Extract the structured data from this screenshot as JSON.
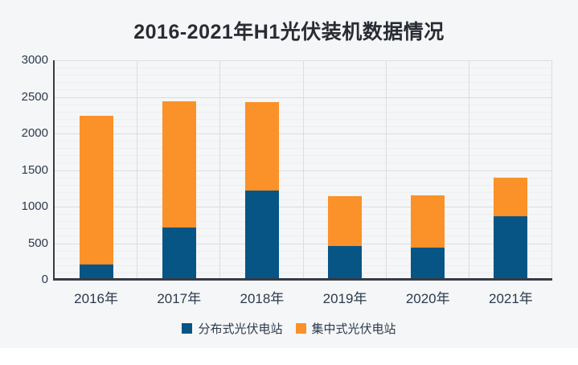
{
  "title": "2016-2021年H1光伏装机数据情况",
  "colors": {
    "distributed": "#075585",
    "centralized": "#FB9129",
    "chart_background": "#F5F6F7",
    "axis_line": "#363B44",
    "grid_major": "#DBDDE0",
    "grid_minor": "#ECEEF0",
    "text": "#2B3A4D",
    "title_text": "#282C33"
  },
  "chart_data": {
    "type": "bar",
    "stacked": true,
    "title": "2016-2021年H1光伏装机数据情况",
    "categories": [
      "2016年",
      "2017年",
      "2018年",
      "2019年",
      "2020年",
      "2021年"
    ],
    "series": [
      {
        "name": "分布式光伏电站",
        "color": "#075585",
        "values": [
          207,
          711,
          1224,
          458,
          444,
          867
        ]
      },
      {
        "name": "集中式光伏电站",
        "color": "#FB9129",
        "values": [
          2036,
          1729,
          1207,
          682,
          708,
          534
        ]
      }
    ],
    "totals": [
      2243,
      2440,
      2431,
      1140,
      1152,
      1401
    ],
    "xlabel": "",
    "ylabel": "",
    "ylim": [
      0,
      3000
    ],
    "y_ticks": [
      0,
      500,
      1000,
      1500,
      2000,
      2500,
      3000
    ],
    "y_minor_step": 100,
    "grid": true,
    "legend_position": "bottom"
  }
}
